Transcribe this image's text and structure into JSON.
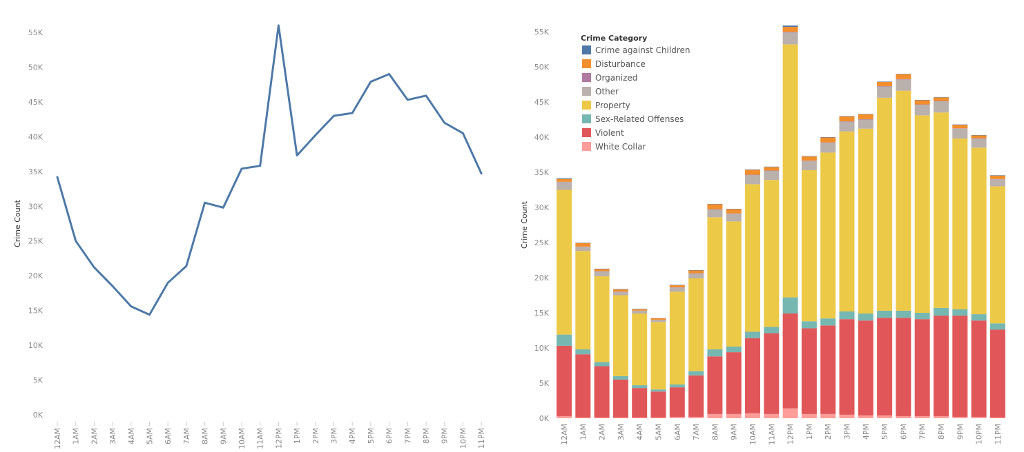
{
  "chart_data": [
    {
      "type": "line",
      "ylabel": "Crime Count",
      "ylim": [
        0,
        57000
      ],
      "yticks": [
        "0K",
        "5K",
        "10K",
        "15K",
        "20K",
        "25K",
        "30K",
        "35K",
        "40K",
        "45K",
        "50K",
        "55K"
      ],
      "categories": [
        "12AM",
        "1AM",
        "2AM",
        "3AM",
        "4AM",
        "5AM",
        "6AM",
        "7AM",
        "8AM",
        "9AM",
        "10AM",
        "11AM",
        "12PM",
        "1PM",
        "2PM",
        "3PM",
        "4PM",
        "5PM",
        "6PM",
        "7PM",
        "8PM",
        "9PM",
        "10PM",
        "11PM"
      ],
      "series": [
        {
          "values": [
            34200,
            25000,
            21200,
            18500,
            15600,
            14400,
            19000,
            21400,
            30500,
            29800,
            35400,
            35800,
            56000,
            37300,
            40200,
            43000,
            43400,
            47900,
            49000,
            45300,
            45900,
            42000,
            40500,
            34700
          ]
        }
      ],
      "color": "#4e79a7"
    },
    {
      "type": "bar",
      "stacked": true,
      "ylabel": "Crime Count",
      "ylim": [
        0,
        57000
      ],
      "yticks": [
        "0K",
        "5K",
        "10K",
        "15K",
        "20K",
        "25K",
        "30K",
        "35K",
        "40K",
        "45K",
        "50K",
        "55K"
      ],
      "categories": [
        "12AM",
        "1AM",
        "2AM",
        "3AM",
        "4AM",
        "5AM",
        "6AM",
        "7AM",
        "8AM",
        "9AM",
        "10AM",
        "11AM",
        "12PM",
        "1PM",
        "2PM",
        "3PM",
        "4PM",
        "5PM",
        "6PM",
        "7PM",
        "8PM",
        "9PM",
        "10PM",
        "11PM"
      ],
      "legend": {
        "title": "Crime Category",
        "position": "top-left"
      },
      "series": [
        {
          "name": "White Collar",
          "color": "#ff9d9a",
          "values": [
            300,
            100,
            100,
            100,
            100,
            100,
            200,
            200,
            600,
            600,
            700,
            600,
            1400,
            600,
            600,
            500,
            400,
            400,
            300,
            300,
            300,
            200,
            200,
            100
          ]
        },
        {
          "name": "Violent",
          "color": "#e15759",
          "values": [
            10000,
            9000,
            7300,
            5400,
            4200,
            3700,
            4200,
            5900,
            8200,
            8800,
            10700,
            11500,
            13500,
            12200,
            12600,
            13600,
            13500,
            13900,
            14000,
            13800,
            14300,
            14400,
            13700,
            12500
          ]
        },
        {
          "name": "Sex-Related Offenses",
          "color": "#76b7b2",
          "values": [
            1600,
            700,
            600,
            500,
            400,
            300,
            400,
            600,
            1000,
            800,
            900,
            900,
            2300,
            1000,
            1000,
            1100,
            1000,
            1000,
            1000,
            900,
            1100,
            900,
            900,
            900
          ]
        },
        {
          "name": "Property",
          "color": "#edc948",
          "values": [
            20600,
            14000,
            12200,
            11500,
            10200,
            9600,
            13200,
            13200,
            18800,
            17800,
            21000,
            20900,
            36000,
            21500,
            23600,
            25600,
            26300,
            30300,
            31300,
            28100,
            27800,
            24300,
            23700,
            19500
          ]
        },
        {
          "name": "Other",
          "color": "#bab0ac",
          "values": [
            1100,
            600,
            700,
            500,
            400,
            300,
            600,
            700,
            1100,
            1100,
            1300,
            1300,
            1700,
            1300,
            1400,
            1400,
            1300,
            1600,
            1600,
            1500,
            1600,
            1400,
            1300,
            1000
          ]
        },
        {
          "name": "Organized",
          "color": "#b07aa1",
          "values": [
            50,
            30,
            30,
            30,
            20,
            20,
            30,
            30,
            50,
            50,
            50,
            50,
            80,
            50,
            50,
            50,
            50,
            60,
            60,
            50,
            50,
            50,
            50,
            40
          ]
        },
        {
          "name": "Disturbance",
          "color": "#f28e2b",
          "values": [
            400,
            500,
            300,
            300,
            200,
            200,
            300,
            400,
            700,
            600,
            700,
            500,
            700,
            600,
            700,
            700,
            700,
            600,
            700,
            600,
            500,
            500,
            400,
            500
          ]
        },
        {
          "name": "Crime against Children",
          "color": "#4e79a7",
          "values": [
            100,
            50,
            50,
            50,
            50,
            30,
            50,
            50,
            50,
            50,
            50,
            50,
            200,
            50,
            50,
            50,
            50,
            50,
            50,
            50,
            50,
            50,
            50,
            50
          ]
        }
      ],
      "legend_order": [
        "Crime against Children",
        "Disturbance",
        "Organized",
        "Other",
        "Property",
        "Sex-Related Offenses",
        "Violent",
        "White Collar"
      ]
    }
  ]
}
